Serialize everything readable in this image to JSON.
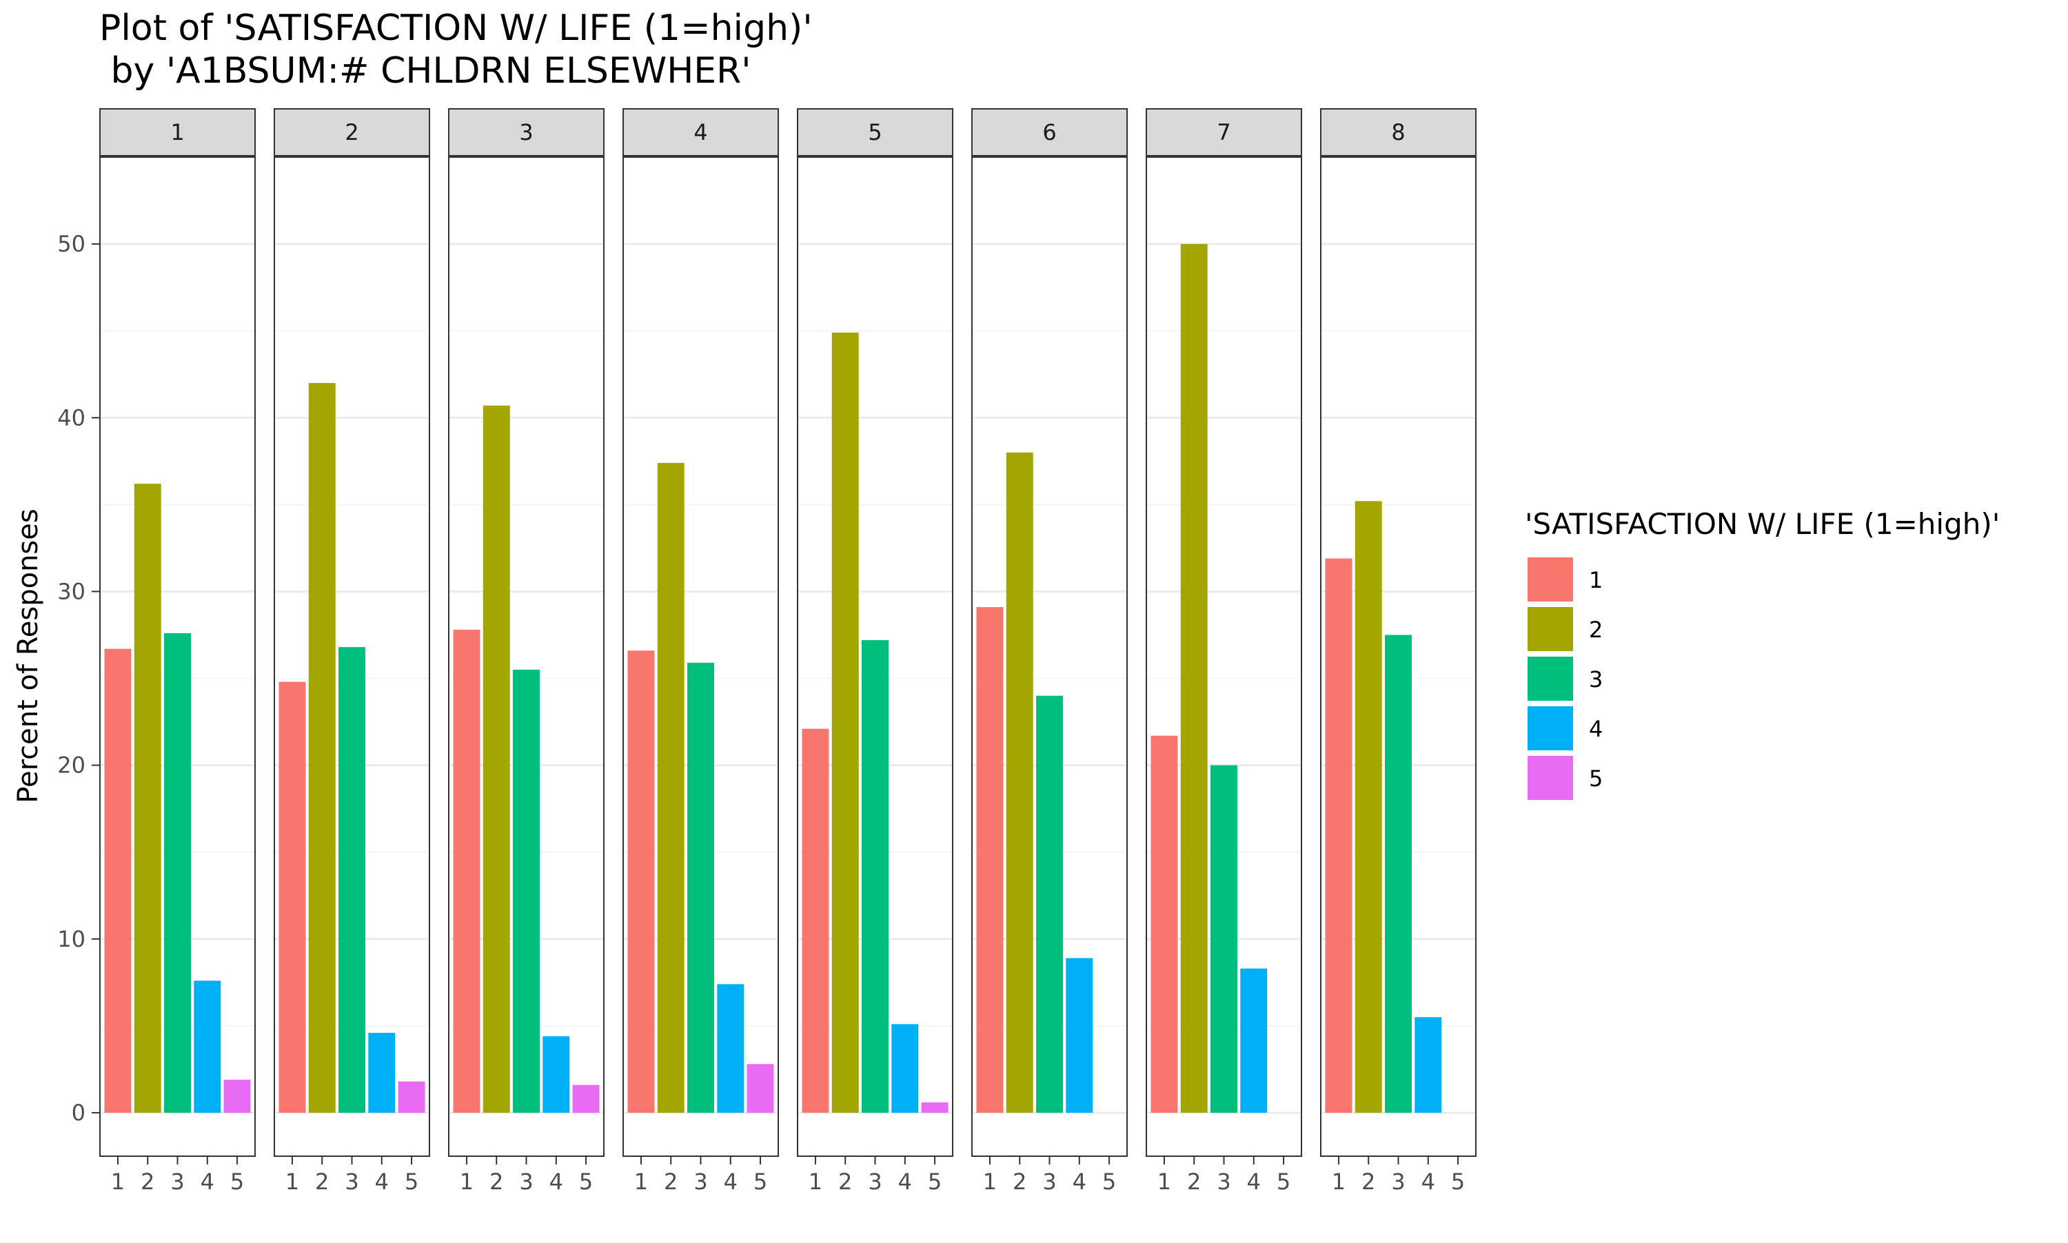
{
  "chart_data": {
    "type": "bar",
    "title_line1": "Plot of 'SATISFACTION W/ LIFE (1=high)'",
    "title_line2": " by 'A1BSUM:# CHLDRN ELSEWHER'",
    "ylabel": "Percent of Responses",
    "xlabel": "",
    "ylim": [
      -2.5,
      55
    ],
    "yticks": [
      0,
      10,
      20,
      30,
      40,
      50
    ],
    "grid": true,
    "legend": {
      "title": "'SATISFACTION W/ LIFE (1=high)'",
      "placement": "right",
      "entries": [
        "1",
        "2",
        "3",
        "4",
        "5"
      ]
    },
    "categories": [
      "1",
      "2",
      "3",
      "4",
      "5"
    ],
    "colors": [
      "#F8766D",
      "#A3A500",
      "#00BF7D",
      "#00B0F6",
      "#E76BF3"
    ],
    "panels": [
      {
        "label": "1",
        "values": [
          26.7,
          36.2,
          27.6,
          7.6,
          1.9
        ]
      },
      {
        "label": "2",
        "values": [
          24.8,
          42.0,
          26.8,
          4.6,
          1.8
        ]
      },
      {
        "label": "3",
        "values": [
          27.8,
          40.7,
          25.5,
          4.4,
          1.6
        ]
      },
      {
        "label": "4",
        "values": [
          26.6,
          37.4,
          25.9,
          7.4,
          2.8
        ]
      },
      {
        "label": "5",
        "values": [
          22.1,
          44.9,
          27.2,
          5.1,
          0.6
        ]
      },
      {
        "label": "6",
        "values": [
          29.1,
          38.0,
          24.0,
          8.9,
          0
        ]
      },
      {
        "label": "7",
        "values": [
          21.7,
          50.0,
          20.0,
          8.3,
          0
        ]
      },
      {
        "label": "8",
        "values": [
          31.9,
          35.2,
          27.5,
          5.5,
          0
        ]
      }
    ]
  }
}
